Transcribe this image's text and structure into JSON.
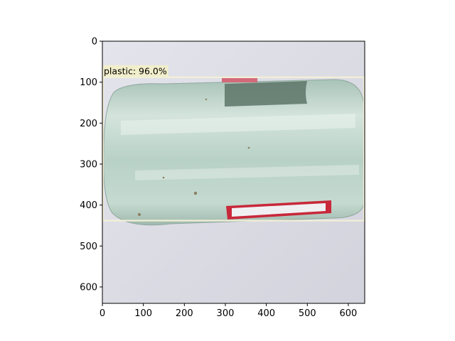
{
  "image": {
    "subject": "clear glass bottle with red label lying horizontally",
    "background_color": "#d9d9e3",
    "glass_color": "#b9d3c8",
    "label_color": "#c8283a"
  },
  "detection": {
    "label": "plastic: 96.0%",
    "box_color": "#f3f0d6",
    "label_bg": "#f3f0c8"
  },
  "chart_data": {
    "type": "image",
    "xlim": [
      0,
      640
    ],
    "ylim": [
      640,
      0
    ],
    "x_ticks": [
      0,
      100,
      200,
      300,
      400,
      500,
      600
    ],
    "y_ticks": [
      0,
      100,
      200,
      300,
      400,
      500,
      600
    ],
    "bbox_data": {
      "x0": 0,
      "y0": 88,
      "x1": 640,
      "y1": 438
    }
  }
}
